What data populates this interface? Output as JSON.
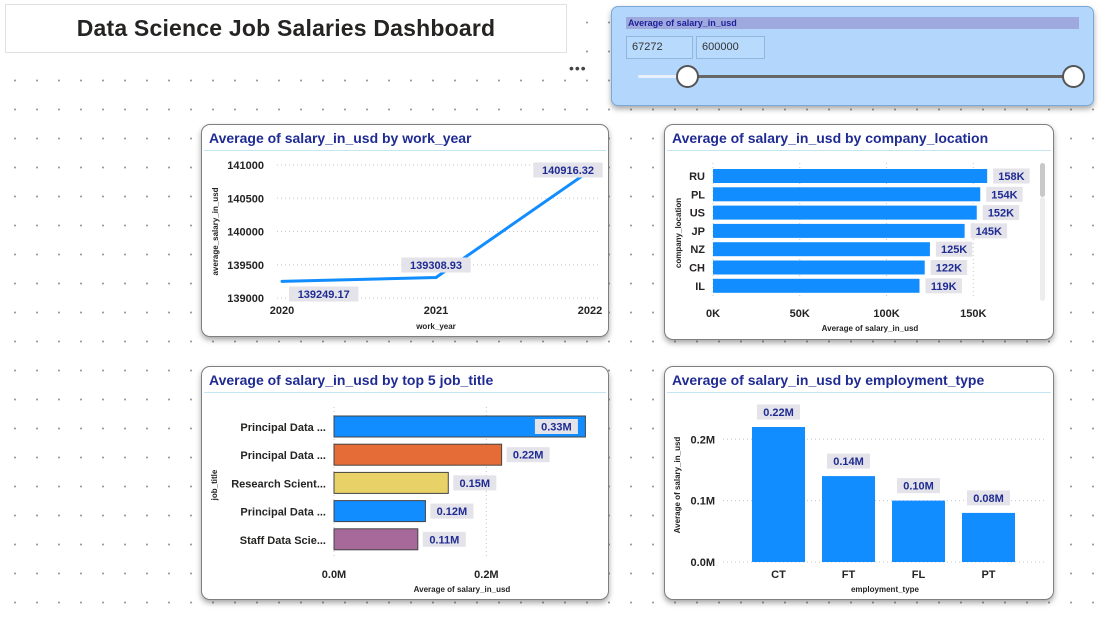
{
  "dashboard": {
    "title": "Data Science Job Salaries Dashboard",
    "more_icon": "more-options-icon",
    "more_glyph": "•••"
  },
  "slicer": {
    "header": "Average of salary_in_usd",
    "min_value": "67272",
    "max_value": "600000",
    "range_low_fraction": 0,
    "range_high_fraction": 1
  },
  "colors": {
    "primary": "#118dff",
    "title": "#1f2b93",
    "orange": "#e66c37",
    "yellow": "#e8d166",
    "purple": "#a66999",
    "slicer_bg": "#b3d7fc"
  },
  "charts": {
    "work_year": {
      "title": "Average of salary_in_usd by work_year",
      "chart_data": {
        "type": "line",
        "x": [
          "2020",
          "2021",
          "2022"
        ],
        "values": [
          139249.17,
          139308.93,
          140916.32
        ],
        "labels": [
          "139249.17",
          "139308.93",
          "140916.32"
        ],
        "yticks": [
          "141000",
          "140500",
          "140000",
          "139500",
          "139000"
        ],
        "ylim": [
          139000,
          141000
        ],
        "xlabel": "work_year",
        "ylabel": "average_salary_in_usd",
        "color": "#118dff"
      }
    },
    "company_location": {
      "title": "Average of salary_in_usd by company_location",
      "chart_data": {
        "type": "bar",
        "orientation": "horizontal",
        "categories": [
          "RU",
          "PL",
          "US",
          "JP",
          "NZ",
          "CH",
          "IL"
        ],
        "values": [
          158000,
          154000,
          152000,
          145000,
          125000,
          122000,
          119000
        ],
        "labels": [
          "158K",
          "154K",
          "152K",
          "145K",
          "125K",
          "122K",
          "119K"
        ],
        "xticks": [
          "0K",
          "50K",
          "100K",
          "150K"
        ],
        "xlim": [
          0,
          170000
        ],
        "xlabel": "Average of salary_in_usd",
        "ylabel": "company_location",
        "color": "#118dff"
      }
    },
    "job_title": {
      "title": "Average of salary_in_usd by top 5 job_title",
      "chart_data": {
        "type": "bar",
        "orientation": "horizontal",
        "categories": [
          "Principal Data ...",
          "Principal Data ...",
          "Research Scient...",
          "Principal Data ...",
          "Staff Data Scie..."
        ],
        "values": [
          0.33,
          0.22,
          0.15,
          0.12,
          0.11
        ],
        "labels": [
          "0.33M",
          "0.22M",
          "0.15M",
          "0.12M",
          "0.11M"
        ],
        "colors": [
          "#118dff",
          "#e66c37",
          "#e8d166",
          "#118dff",
          "#a66999"
        ],
        "xticks": [
          "0.0M",
          "0.2M"
        ],
        "xlim": [
          0,
          0.42
        ],
        "xlabel": "Average of salary_in_usd",
        "ylabel": "job_title"
      }
    },
    "employment_type": {
      "title": "Average of salary_in_usd by employment_type",
      "chart_data": {
        "type": "bar",
        "categories": [
          "CT",
          "FT",
          "FL",
          "PT"
        ],
        "values": [
          0.22,
          0.14,
          0.1,
          0.08
        ],
        "labels": [
          "0.22M",
          "0.14M",
          "0.10M",
          "0.08M"
        ],
        "yticks": [
          "0.2M",
          "0.1M",
          "0.0M"
        ],
        "ylim": [
          0,
          0.22
        ],
        "xlabel": "employment_type",
        "ylabel": "Average of salary_in_usd",
        "color": "#118dff"
      }
    }
  }
}
